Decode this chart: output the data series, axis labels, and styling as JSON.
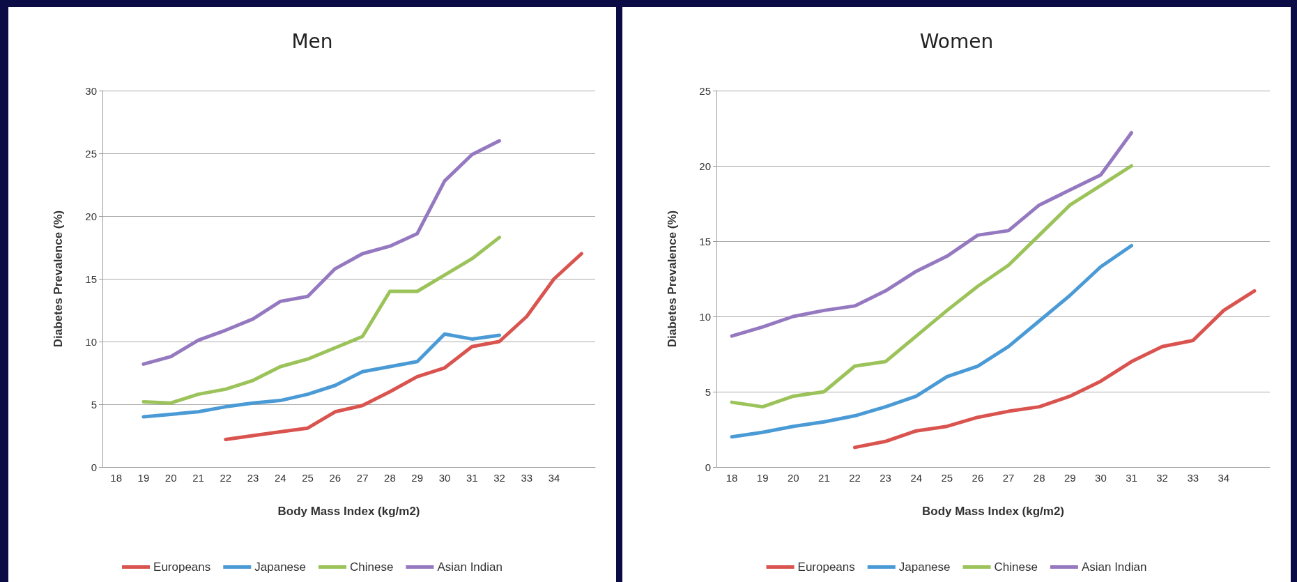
{
  "chart_data": [
    {
      "type": "line",
      "title": "Men",
      "xlabel": "Body Mass Index (kg/m2)",
      "ylabel": "Diabetes Prevalence (%)",
      "categories": [
        "18",
        "19",
        "20",
        "21",
        "22",
        "23",
        "24",
        "25",
        "26",
        "27",
        "28",
        "29",
        "30",
        "31",
        "32",
        "33",
        "34",
        null
      ],
      "ylim": [
        0,
        30
      ],
      "yticks": [
        0,
        5,
        10,
        15,
        20,
        25,
        30
      ],
      "grid": "y",
      "legend": "bottom",
      "marker": "none",
      "line_style": "solid",
      "series": [
        {
          "name": "Europeans",
          "color": "#d9534f",
          "values": [
            null,
            null,
            null,
            null,
            2.2,
            2.5,
            2.8,
            3.1,
            4.4,
            4.9,
            6.0,
            7.2,
            7.9,
            9.6,
            10.0,
            12.0,
            15.0,
            17.0
          ]
        },
        {
          "name": "Japanese",
          "color": "#4a9ad6",
          "values": [
            null,
            4.0,
            4.2,
            4.4,
            4.8,
            5.1,
            5.3,
            5.8,
            6.5,
            7.6,
            8.0,
            8.4,
            10.6,
            10.2,
            10.5,
            null,
            null,
            null
          ]
        },
        {
          "name": "Chinese",
          "color": "#9bc35a",
          "values": [
            null,
            5.2,
            5.1,
            5.8,
            6.2,
            6.9,
            8.0,
            8.6,
            9.5,
            10.4,
            14.0,
            14.0,
            15.3,
            16.6,
            18.3,
            null,
            null,
            null
          ]
        },
        {
          "name": "Asian Indian",
          "color": "#9579c0",
          "values": [
            null,
            8.2,
            8.8,
            10.1,
            10.9,
            11.8,
            13.2,
            13.6,
            15.8,
            17.0,
            17.6,
            18.6,
            22.8,
            24.9,
            26.0,
            null,
            null,
            null
          ]
        }
      ]
    },
    {
      "type": "line",
      "title": "Women",
      "xlabel": "Body Mass Index (kg/m2)",
      "ylabel": "Diabetes Prevalence (%)",
      "categories": [
        "18",
        "19",
        "20",
        "21",
        "22",
        "23",
        "24",
        "25",
        "26",
        "27",
        "28",
        "29",
        "30",
        "31",
        "32",
        "33",
        "34",
        null
      ],
      "ylim": [
        0,
        25
      ],
      "yticks": [
        0,
        5,
        10,
        15,
        20,
        25
      ],
      "grid": "y",
      "legend": "bottom",
      "marker": "none",
      "line_style": "solid",
      "series": [
        {
          "name": "Europeans",
          "color": "#d9534f",
          "values": [
            null,
            null,
            null,
            null,
            1.3,
            1.7,
            2.4,
            2.7,
            3.3,
            3.7,
            4.0,
            4.7,
            5.7,
            7.0,
            8.0,
            8.4,
            10.4,
            11.7
          ]
        },
        {
          "name": "Japanese",
          "color": "#4a9ad6",
          "values": [
            2.0,
            2.3,
            2.7,
            3.0,
            3.4,
            4.0,
            4.7,
            6.0,
            6.7,
            8.0,
            9.7,
            11.4,
            13.3,
            14.7,
            null,
            null,
            null,
            null
          ]
        },
        {
          "name": "Chinese",
          "color": "#9bc35a",
          "values": [
            4.3,
            4.0,
            4.7,
            5.0,
            6.7,
            7.0,
            8.7,
            10.4,
            12.0,
            13.4,
            15.4,
            17.4,
            18.7,
            20.0,
            null,
            null,
            null,
            null
          ]
        },
        {
          "name": "Asian Indian",
          "color": "#9579c0",
          "values": [
            8.7,
            9.3,
            10.0,
            10.4,
            10.7,
            11.7,
            13.0,
            14.0,
            15.4,
            15.7,
            17.4,
            18.4,
            19.4,
            22.2,
            null,
            null,
            null,
            null
          ]
        }
      ]
    }
  ]
}
